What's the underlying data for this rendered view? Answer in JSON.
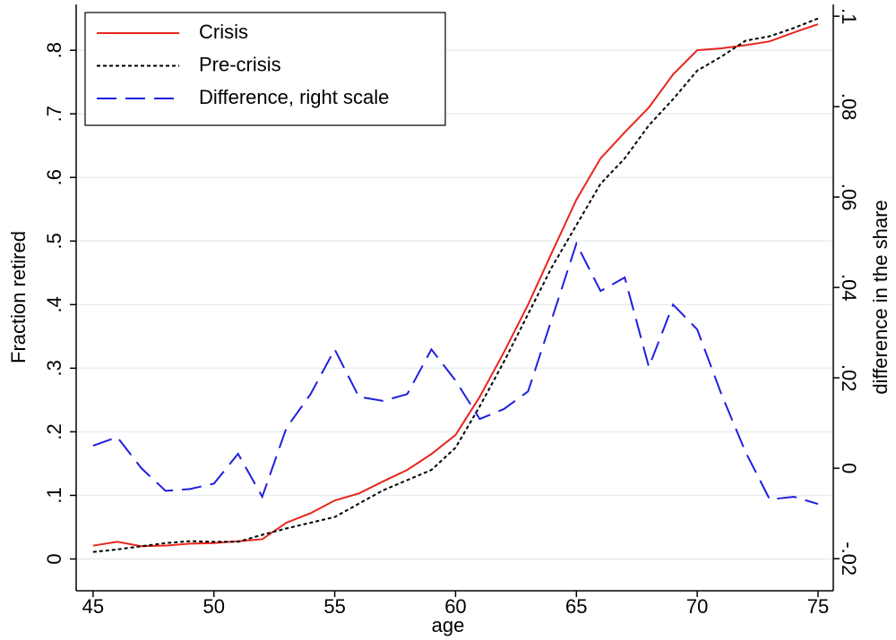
{
  "chart_data": {
    "type": "line",
    "x_label": "age",
    "y_label": "Fraction retired",
    "y2_label": "difference in the share",
    "x": [
      45,
      46,
      47,
      48,
      49,
      50,
      51,
      52,
      53,
      54,
      55,
      56,
      57,
      58,
      59,
      60,
      61,
      62,
      63,
      64,
      65,
      66,
      67,
      68,
      69,
      70,
      71,
      72,
      73,
      74,
      75
    ],
    "series": [
      {
        "name": "Crisis",
        "color": "#e8251d",
        "style": "solid",
        "values": [
          0.021,
          0.027,
          0.02,
          0.021,
          0.024,
          0.025,
          0.028,
          0.031,
          0.057,
          0.072,
          0.092,
          0.103,
          0.122,
          0.14,
          0.165,
          0.195,
          0.255,
          0.325,
          0.4,
          0.483,
          0.565,
          0.63,
          0.671,
          0.71,
          0.762,
          0.8,
          0.803,
          0.808,
          0.814,
          0.828,
          0.841
        ]
      },
      {
        "name": "Pre-crisis",
        "color": "#000000",
        "style": "dotted",
        "values": [
          0.011,
          0.015,
          0.02,
          0.025,
          0.028,
          0.027,
          0.027,
          0.038,
          0.048,
          0.057,
          0.066,
          0.087,
          0.108,
          0.124,
          0.14,
          0.175,
          0.24,
          0.31,
          0.385,
          0.46,
          0.525,
          0.59,
          0.63,
          0.682,
          0.723,
          0.768,
          0.79,
          0.815,
          0.822,
          0.835,
          0.85
        ]
      },
      {
        "name": "Difference, right scale",
        "color": "#1f1fe0",
        "style": "dashed",
        "axis": "y2",
        "values": [
          0.005,
          0.0069,
          0.0,
          -0.005,
          -0.0046,
          -0.0034,
          0.0032,
          -0.0063,
          0.0089,
          0.0164,
          0.0263,
          0.0158,
          0.0149,
          0.0164,
          0.0263,
          0.0194,
          0.0109,
          0.0131,
          0.017,
          0.0333,
          0.0497,
          0.0392,
          0.0422,
          0.0224,
          0.0362,
          0.0307,
          0.0164,
          0.0036,
          -0.0069,
          -0.0063,
          -0.0079
        ]
      }
    ],
    "xlim": [
      44.3,
      75.63
    ],
    "xticks": [
      45,
      50,
      55,
      60,
      65,
      70,
      75
    ],
    "ylim": [
      -0.05,
      0.872
    ],
    "yticks": [
      0,
      {
        "value": 0.1,
        "label": ".1"
      },
      {
        "value": 0.2,
        "label": ".2"
      },
      {
        "value": 0.3,
        "label": ".3"
      },
      {
        "value": 0.4,
        "label": ".4"
      },
      {
        "value": 0.5,
        "label": ".5"
      },
      {
        "value": 0.6,
        "label": ".6"
      },
      {
        "value": 0.7,
        "label": ".7"
      },
      {
        "value": 0.8,
        "label": ".8"
      }
    ],
    "y2lim": [
      -0.0271,
      0.1026
    ],
    "y2ticks": [
      {
        "value": -0.02,
        "label": "-.02"
      },
      0,
      {
        "value": 0.02,
        "label": ".02"
      },
      {
        "value": 0.04,
        "label": ".04"
      },
      {
        "value": 0.06,
        "label": ".06"
      },
      {
        "value": 0.08,
        "label": ".08"
      },
      {
        "value": 0.1,
        "label": ".1"
      }
    ],
    "grid": true,
    "legend": "top-left"
  }
}
